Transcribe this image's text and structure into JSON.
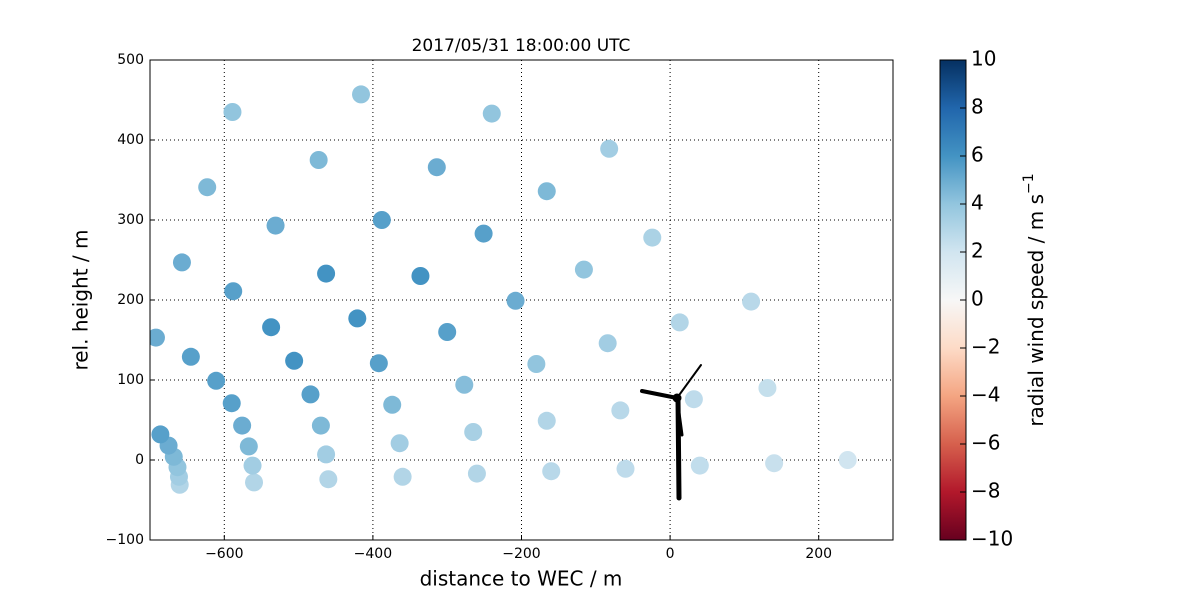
{
  "chart_data": {
    "type": "scatter",
    "title": "2017/05/31 18:00:00 UTC",
    "xlabel": "distance to WEC / m",
    "ylabel": "rel. height / m",
    "x": [
      -660,
      -560,
      -460,
      -360,
      -260,
      -160,
      -60,
      40,
      140,
      239,
      -661,
      -562,
      -463,
      -364,
      -265,
      -166,
      -67,
      32,
      131,
      -663,
      -567,
      -470,
      -374,
      -277,
      -180,
      -84,
      13,
      109,
      -668,
      -576,
      -484,
      -392,
      -300,
      -208,
      -116,
      -24,
      -675,
      -590,
      -506,
      -421,
      -336,
      -251,
      -166,
      -82,
      -686,
      -611,
      -537,
      -463,
      -388,
      -314,
      -240,
      -645,
      -588,
      -531,
      -473,
      -416,
      -692,
      -657,
      -623,
      -589
    ],
    "y": [
      -31,
      -28,
      -24,
      -21,
      -17,
      -14,
      -11,
      -7,
      -4,
      0,
      -21,
      -7,
      7,
      21,
      35,
      49,
      62,
      76,
      90,
      -9,
      17,
      43,
      69,
      94,
      120,
      146,
      172,
      198,
      4,
      43,
      82,
      121,
      160,
      199,
      238,
      278,
      18,
      71,
      124,
      177,
      230,
      283,
      336,
      389,
      32,
      99,
      166,
      233,
      300,
      366,
      433,
      129,
      211,
      293,
      375,
      457,
      153,
      247,
      341,
      435
    ],
    "values": [
      3,
      3,
      3,
      3,
      3,
      2.8,
      2.6,
      2.5,
      2.3,
      2,
      3.5,
      3.5,
      3.5,
      3.5,
      3.3,
      3,
      2.8,
      2.6,
      2.4,
      4,
      4.5,
      4.5,
      4.5,
      4.3,
      4,
      3.5,
      3,
      2.8,
      4.5,
      5,
      5.5,
      5.5,
      5.5,
      5,
      4,
      3.2,
      5,
      5.5,
      6,
      6,
      6,
      5.5,
      4.5,
      3.5,
      5.5,
      5.5,
      6,
      6,
      5.5,
      5,
      4,
      5.5,
      5.5,
      5,
      4.5,
      4,
      5,
      5,
      4.5,
      4
    ],
    "xlim": [
      -700,
      300
    ],
    "ylim": [
      -100,
      500
    ],
    "xticks": [
      {
        "value": -600,
        "label": "−600"
      },
      {
        "value": -400,
        "label": "−400"
      },
      {
        "value": -200,
        "label": "−200"
      },
      0,
      200
    ],
    "yticks": [
      {
        "value": -100,
        "label": "−100"
      },
      0,
      100,
      200,
      300,
      400,
      500
    ],
    "grid": true,
    "colormap": [
      "#67001f",
      "#b2182b",
      "#d6604d",
      "#f4a582",
      "#fddbc7",
      "#f7f7f7",
      "#d1e5f0",
      "#92c5de",
      "#4393c3",
      "#2166ac",
      "#053061"
    ],
    "clim": [
      -10,
      10
    ],
    "cticks": [
      {
        "value": -10,
        "label": "−10"
      },
      {
        "value": -8,
        "label": "−8"
      },
      {
        "value": -6,
        "label": "−6"
      },
      {
        "value": -4,
        "label": "−4"
      },
      {
        "value": -2,
        "label": "−2"
      },
      0,
      2,
      4,
      6,
      8,
      10
    ],
    "colorbar_label": "radial wind speed / m s",
    "colorbar_label_exponent": "−1"
  }
}
